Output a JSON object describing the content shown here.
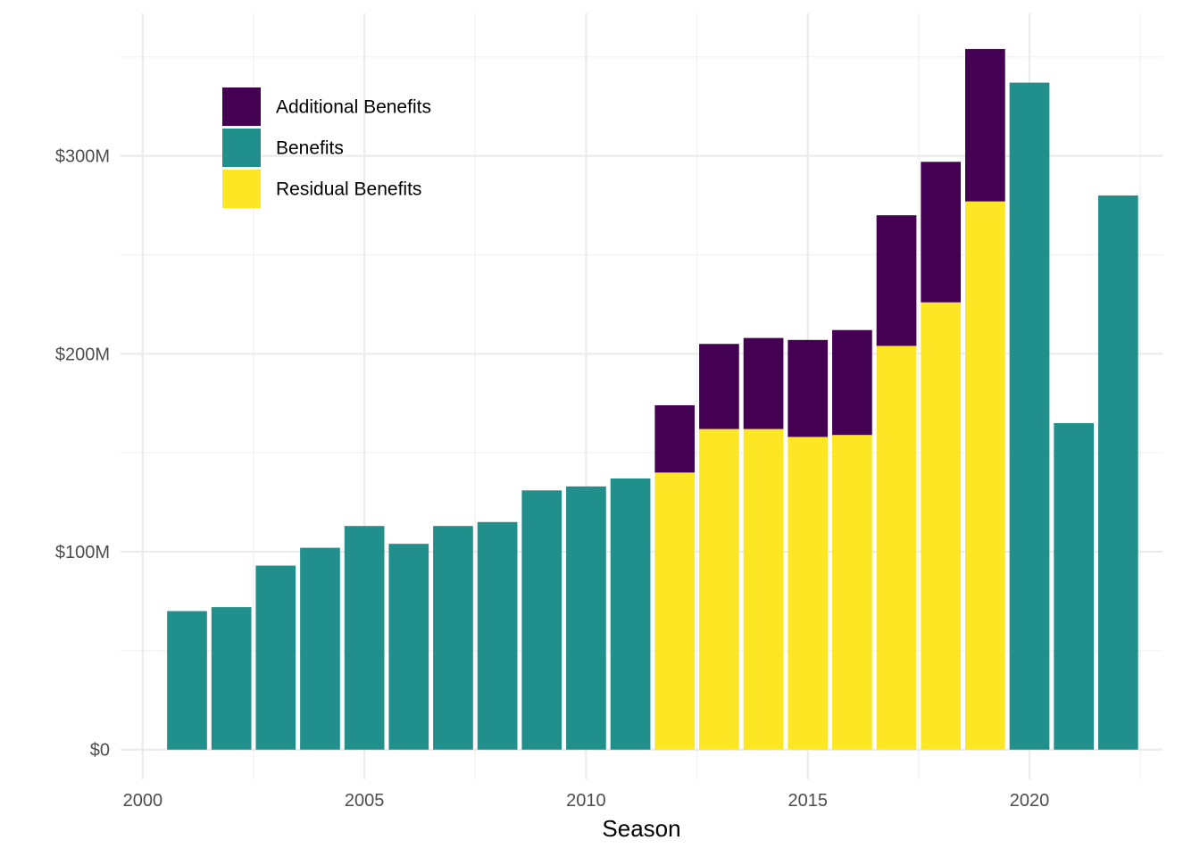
{
  "chart_data": {
    "type": "bar",
    "stacked": true,
    "title": "",
    "xlabel": "Season",
    "ylabel": "",
    "x": [
      2001,
      2002,
      2003,
      2004,
      2005,
      2006,
      2007,
      2008,
      2009,
      2010,
      2011,
      2012,
      2013,
      2014,
      2015,
      2016,
      2017,
      2018,
      2019,
      2020,
      2021,
      2022
    ],
    "x_ticks": [
      2000,
      2005,
      2010,
      2015,
      2020
    ],
    "x_tick_labels": [
      "2000",
      "2005",
      "2010",
      "2015",
      "2020"
    ],
    "xlim": [
      1999.5,
      2023.0
    ],
    "y_ticks": [
      0,
      100,
      200,
      300
    ],
    "y_tick_labels": [
      "$0",
      "$100M",
      "$200M",
      "$300M"
    ],
    "ylim": [
      -15,
      372
    ],
    "y_unit": "$M",
    "grid": true,
    "legend_position": "top-left, inside plot",
    "series": [
      {
        "name": "Residual Benefits",
        "color": "#FDE725",
        "values": [
          0,
          0,
          0,
          0,
          0,
          0,
          0,
          0,
          0,
          0,
          0,
          140,
          162,
          162,
          158,
          159,
          204,
          226,
          277,
          0,
          0,
          0
        ]
      },
      {
        "name": "Benefits",
        "color": "#21908C",
        "values": [
          70,
          72,
          93,
          102,
          113,
          104,
          113,
          115,
          131,
          133,
          137,
          0,
          0,
          0,
          0,
          0,
          0,
          0,
          0,
          337,
          165,
          280
        ]
      },
      {
        "name": "Additional Benefits",
        "color": "#440154",
        "values": [
          0,
          0,
          0,
          0,
          0,
          0,
          0,
          0,
          0,
          0,
          0,
          34,
          43,
          46,
          49,
          53,
          66,
          71,
          77,
          0,
          0,
          0
        ]
      }
    ],
    "legend_order": [
      "Additional Benefits",
      "Benefits",
      "Residual Benefits"
    ]
  }
}
